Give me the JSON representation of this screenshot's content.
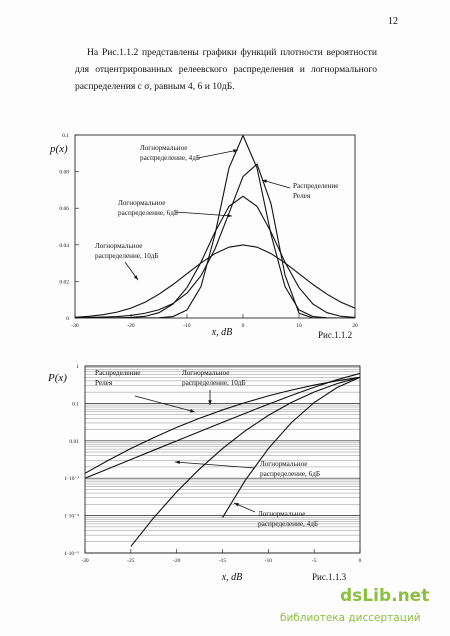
{
  "page_number": "12",
  "paragraph": "На Рис.1.1.2 представлены графики функций плотности вероятности для отцентрированных релеевского распределения и логнормального распределения с σ, равным 4, 6 и 10дБ.",
  "chart_data": [
    {
      "type": "line",
      "ylabel": "p(x)",
      "xlabel": "x, dB",
      "caption": "Рис.1.1.2",
      "x": [
        -30,
        -27.5,
        -25,
        -22.5,
        -20,
        -17.5,
        -15,
        -12.5,
        -10,
        -7.5,
        -5,
        -2.5,
        0,
        2.5,
        5,
        7.5,
        10,
        12.5,
        15,
        17.5,
        20
      ],
      "series": [
        {
          "name": "Логнормальное распределение, 4дБ",
          "color": "#111111",
          "values": [
            0,
            0,
            0,
            0,
            0,
            1e-05,
            0.0001,
            0.0008,
            0.0044,
            0.0172,
            0.0457,
            0.082,
            0.0997,
            0.082,
            0.0457,
            0.0172,
            0.0044,
            0.0008,
            0.0001,
            0,
            0
          ]
        },
        {
          "name": "Логнормальное распределение, 6дБ",
          "color": "#111111",
          "values": [
            0,
            0,
            0,
            0.0001,
            0.0003,
            0.0009,
            0.0029,
            0.0076,
            0.0166,
            0.0305,
            0.047,
            0.061,
            0.0665,
            0.061,
            0.047,
            0.0305,
            0.0166,
            0.0076,
            0.0029,
            0.0009,
            0.0003
          ]
        },
        {
          "name": "Логнормальное распределение, 10дБ",
          "color": "#111111",
          "values": [
            0.0004,
            0.0009,
            0.0018,
            0.0032,
            0.0054,
            0.0086,
            0.013,
            0.0183,
            0.0242,
            0.0301,
            0.0352,
            0.0387,
            0.0399,
            0.0387,
            0.0352,
            0.0301,
            0.0242,
            0.0183,
            0.013,
            0.0086,
            0.0054
          ]
        },
        {
          "name": "Распределение Релея",
          "color": "#111111",
          "values": [
            0.0001,
            0.0003,
            0.0005,
            0.0008,
            0.0014,
            0.0026,
            0.0045,
            0.0079,
            0.0136,
            0.0231,
            0.0377,
            0.0573,
            0.0773,
            0.0841,
            0.0625,
            0.0235,
            0.0026,
            0,
            0,
            0,
            0
          ]
        }
      ],
      "annotations": [
        [
          "Логнормальное",
          "распределение, 4дБ"
        ],
        [
          "Распределение",
          "Релея"
        ],
        [
          "Логнормальное",
          "распределение, 6дБ"
        ],
        [
          "Логнормальное",
          "распределение, 10дБ"
        ]
      ],
      "xlim": [
        -30,
        20
      ],
      "xticks": [
        -30,
        -20,
        -10,
        0,
        10,
        20
      ],
      "ylim": [
        0,
        0.1
      ],
      "yticks": [
        0,
        0.02,
        0.04,
        0.06,
        0.08,
        0.1
      ],
      "grid": false,
      "log_y": false
    },
    {
      "type": "line",
      "ylabel": "P(x)",
      "xlabel": "x, dB",
      "caption": "Рис.1.1.3",
      "x": [
        -30,
        -27.5,
        -25,
        -22.5,
        -20,
        -17.5,
        -15,
        -12.5,
        -10,
        -7.5,
        -5,
        -2.5,
        0
      ],
      "series": [
        {
          "name": "Распределение Релея",
          "color": "#111111",
          "values": [
            0.001,
            0.00178,
            0.00316,
            0.00561,
            0.00995,
            0.0176,
            0.0311,
            0.0547,
            0.0952,
            0.163,
            0.271,
            0.43,
            0.632
          ]
        },
        {
          "name": "Логнормальное распределение, 10дБ",
          "color": "#111111",
          "values": [
            0.00135,
            0.00298,
            0.00621,
            0.0122,
            0.0228,
            0.0401,
            0.0668,
            0.1056,
            0.1587,
            0.2266,
            0.3085,
            0.4013,
            0.5
          ]
        },
        {
          "name": "Логнормальное распределение, 6дБ",
          "color": "#111111",
          "values": [
            null,
            null,
            1.5e-05,
            8.8e-05,
            0.00043,
            0.00177,
            0.0062,
            0.0186,
            0.0478,
            0.1056,
            0.2024,
            0.3385,
            0.5
          ]
        },
        {
          "name": "Логнормальное распределение, 4дБ",
          "color": "#111111",
          "values": [
            null,
            null,
            null,
            null,
            null,
            null,
            8.8e-05,
            0.00089,
            0.0062,
            0.0304,
            0.1056,
            0.266,
            0.5
          ]
        }
      ],
      "annotations": [
        [
          "Распределение",
          "Релея"
        ],
        [
          "Логнормальное",
          "распределение, 10дБ"
        ],
        [
          "Логнормальное",
          "распределение, 6дБ"
        ],
        [
          "Логнормальное",
          "распределение, 4дБ"
        ]
      ],
      "xlim": [
        -30,
        0
      ],
      "xticks": [
        -30,
        -25,
        -20,
        -15,
        -10,
        -5,
        0
      ],
      "ylim": [
        1e-05,
        1
      ],
      "yticks": [
        {
          "value": 1e-05,
          "label": "1·10⁻⁵"
        },
        {
          "value": 0.0001,
          "label": "1·10⁻⁴"
        },
        {
          "value": 0.001,
          "label": "1·10⁻³"
        },
        0.01,
        0.1,
        1
      ],
      "grid": true,
      "log_y": true
    }
  ],
  "watermark": {
    "logo": "dsLib.net",
    "subtitle": "библиотека диссертаций"
  }
}
